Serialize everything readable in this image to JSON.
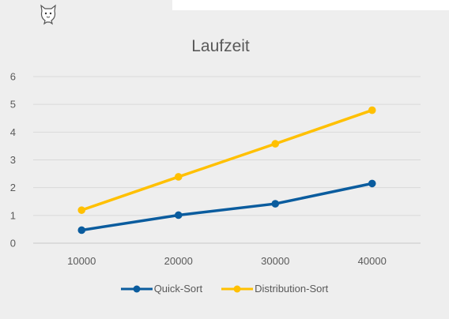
{
  "chart_data": {
    "type": "line",
    "title": "Laufzeit",
    "xlabel": "",
    "ylabel": "",
    "categories": [
      "10000",
      "20000",
      "30000",
      "40000"
    ],
    "ylim": [
      0,
      6
    ],
    "yticks": [
      "0",
      "1",
      "2",
      "3",
      "4",
      "5",
      "6"
    ],
    "grid": true,
    "legend": "bottom",
    "series": [
      {
        "name": "Quick-Sort",
        "values": [
          0.47,
          1.01,
          1.42,
          2.15
        ],
        "color": "#0a5c9e"
      },
      {
        "name": "Distribution-Sort",
        "values": [
          1.19,
          2.39,
          3.58,
          4.79
        ],
        "color": "#ffc000"
      }
    ]
  },
  "icons": {
    "corner": "cat-icon"
  }
}
